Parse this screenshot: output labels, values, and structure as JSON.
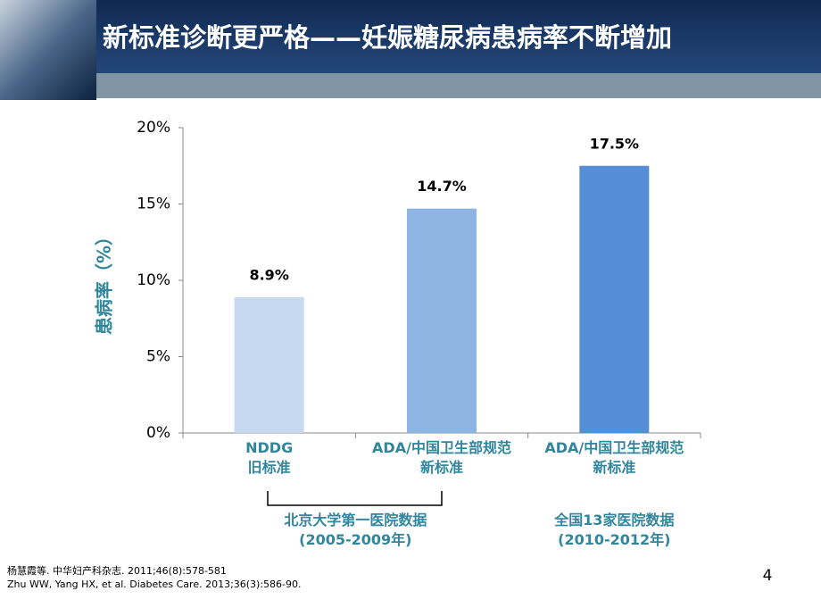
{
  "slide": {
    "title": "新标准诊断更严格——妊娠糖尿病患病率不断增加",
    "page_number": "4",
    "references": [
      "杨慧霞等. 中华妇产科杂志. 2011;46(8):578-581",
      "Zhu WW, Yang HX, et al. Diabetes Care. 2013;36(3):586-90."
    ]
  },
  "chart_data": {
    "type": "bar",
    "ylabel": "患病率（%）",
    "categories": [
      "NDDG\n旧标准",
      "ADA/中国卫生部规范\n新标准",
      "ADA/中国卫生部规范\n新标准"
    ],
    "values": [
      8.9,
      14.7,
      17.5
    ],
    "value_labels": [
      "8.9%",
      "14.7%",
      "17.5%"
    ],
    "colors": [
      "#c6d9f1",
      "#8db4e3",
      "#558ed5"
    ],
    "ylim": [
      0,
      20
    ],
    "yticks": [
      {
        "value": 0,
        "label": "0%"
      },
      {
        "value": 5,
        "label": "5%"
      },
      {
        "value": 10,
        "label": "10%"
      },
      {
        "value": 15,
        "label": "15%"
      },
      {
        "value": 20,
        "label": "20%"
      }
    ],
    "annotations": [
      "北京大学第一医院数据\n(2005-2009年)",
      "全国13家医院数据\n(2010-2012年)"
    ]
  }
}
